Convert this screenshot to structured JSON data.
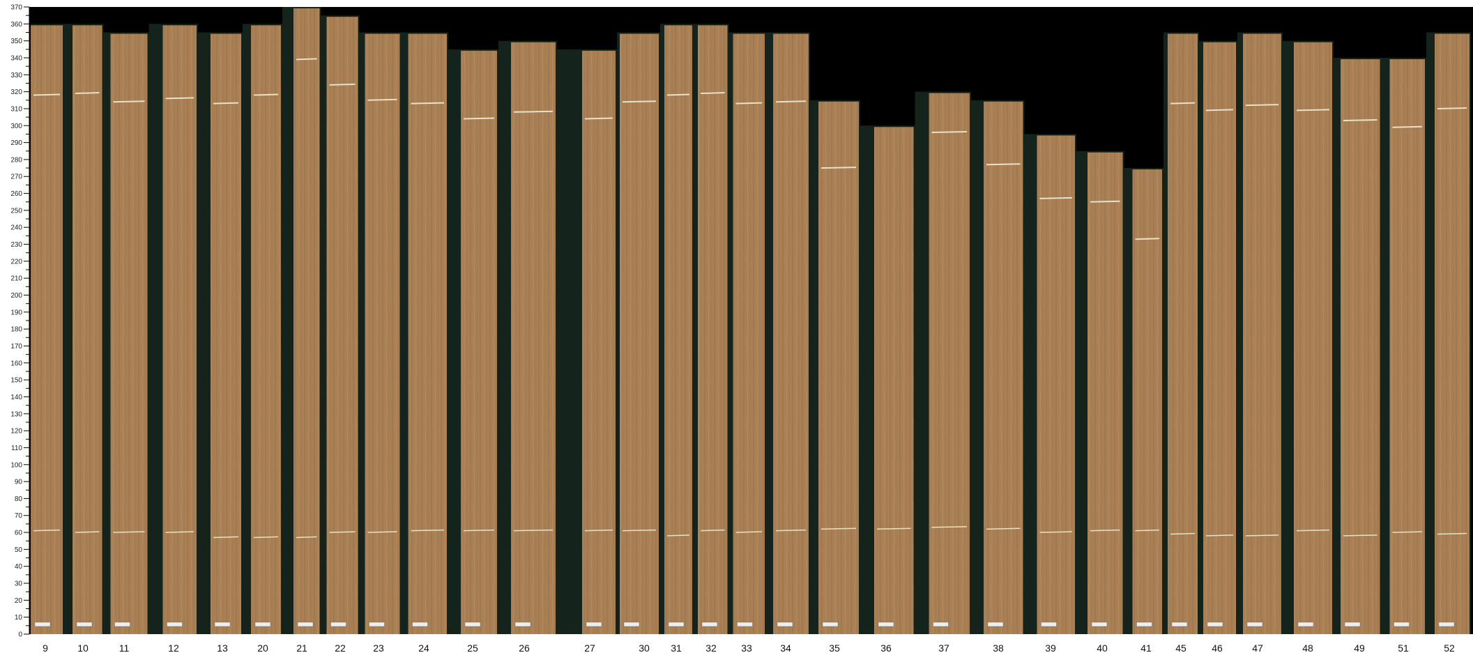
{
  "y_axis": {
    "min": 0,
    "max": 370,
    "major_step": 10,
    "minor_step": 5
  },
  "colors": {
    "background": "#000000",
    "gap": "#14241c",
    "wood": "#a97f54",
    "mark": "#e8e2c8",
    "tag": "#eeeeee"
  },
  "boards": [
    {
      "label": "9",
      "top": 360,
      "mark_upper": 318,
      "mark_lower": 61
    },
    {
      "label": "10",
      "top": 360,
      "mark_upper": 319,
      "mark_lower": 60
    },
    {
      "label": "11",
      "top": 355,
      "mark_upper": 314,
      "mark_lower": 60
    },
    {
      "label": "12",
      "top": 360,
      "mark_upper": 316,
      "mark_lower": 60
    },
    {
      "label": "13",
      "top": 355,
      "mark_upper": 313,
      "mark_lower": 57
    },
    {
      "label": "20",
      "top": 360,
      "mark_upper": 318,
      "mark_lower": 57
    },
    {
      "label": "21",
      "top": 370,
      "mark_upper": 339,
      "mark_lower": 57
    },
    {
      "label": "22",
      "top": 365,
      "mark_upper": 324,
      "mark_lower": 60
    },
    {
      "label": "23",
      "top": 355,
      "mark_upper": 315,
      "mark_lower": 60
    },
    {
      "label": "24",
      "top": 355,
      "mark_upper": 313,
      "mark_lower": 61
    },
    {
      "label": "25",
      "top": 345,
      "mark_upper": 304,
      "mark_lower": 61
    },
    {
      "label": "26",
      "top": 350,
      "mark_upper": 308,
      "mark_lower": 61
    },
    {
      "label": "27",
      "top": 345,
      "mark_upper": 304,
      "mark_lower": 61
    },
    {
      "label": "30",
      "top": 355,
      "mark_upper": 314,
      "mark_lower": 61
    },
    {
      "label": "31",
      "top": 360,
      "mark_upper": 318,
      "mark_lower": 58
    },
    {
      "label": "32",
      "top": 360,
      "mark_upper": 319,
      "mark_lower": 61
    },
    {
      "label": "33",
      "top": 355,
      "mark_upper": 313,
      "mark_lower": 60
    },
    {
      "label": "34",
      "top": 355,
      "mark_upper": 314,
      "mark_lower": 61
    },
    {
      "label": "35",
      "top": 315,
      "mark_upper": 275,
      "mark_lower": 62
    },
    {
      "label": "36",
      "top": 300,
      "mark_upper": null,
      "mark_lower": 62
    },
    {
      "label": "37",
      "top": 320,
      "mark_upper": 296,
      "mark_lower": 63
    },
    {
      "label": "38",
      "top": 315,
      "mark_upper": 277,
      "mark_lower": 62
    },
    {
      "label": "39",
      "top": 295,
      "mark_upper": 257,
      "mark_lower": 60
    },
    {
      "label": "40",
      "top": 285,
      "mark_upper": 255,
      "mark_lower": 61
    },
    {
      "label": "41",
      "top": 275,
      "mark_upper": 233,
      "mark_lower": 61
    },
    {
      "label": "45",
      "top": 355,
      "mark_upper": 313,
      "mark_lower": 59
    },
    {
      "label": "46",
      "top": 350,
      "mark_upper": 309,
      "mark_lower": 58
    },
    {
      "label": "47",
      "top": 355,
      "mark_upper": 312,
      "mark_lower": 58
    },
    {
      "label": "48",
      "top": 350,
      "mark_upper": 309,
      "mark_lower": 61
    },
    {
      "label": "49",
      "top": 340,
      "mark_upper": 303,
      "mark_lower": 58
    },
    {
      "label": "51",
      "top": 340,
      "mark_upper": 299,
      "mark_lower": 60
    },
    {
      "label": "52",
      "top": 355,
      "mark_upper": 310,
      "mark_lower": 59
    }
  ]
}
